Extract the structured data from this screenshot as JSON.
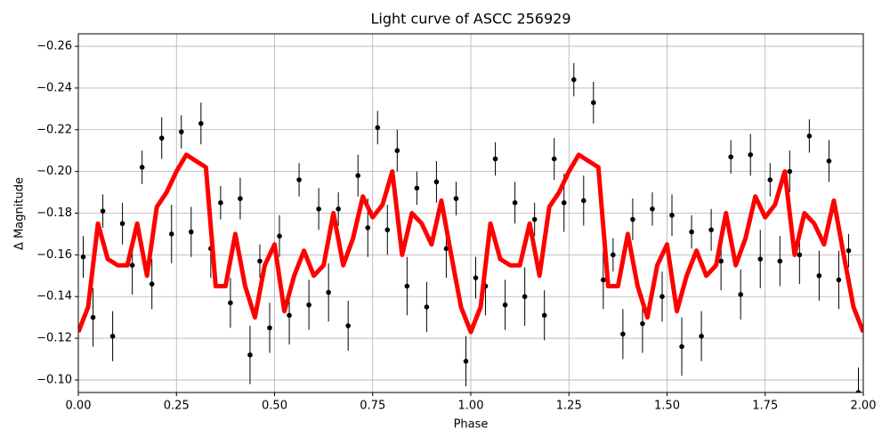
{
  "chart_data": {
    "type": "scatter",
    "title": "Light curve of ASCC 256929",
    "xlabel": "Phase",
    "ylabel": "Δ Magnitude",
    "xlim": [
      0,
      2
    ],
    "ylim": [
      -0.094,
      -0.266
    ],
    "grid": true,
    "xticks": [
      {
        "value": 0,
        "label": "0.00"
      },
      {
        "value": 0.25,
        "label": "0.25"
      },
      {
        "value": 0.5,
        "label": "0.50"
      },
      {
        "value": 0.75,
        "label": "0.75"
      },
      {
        "value": 1,
        "label": "1.00"
      },
      {
        "value": 1.25,
        "label": "1.25"
      },
      {
        "value": 1.5,
        "label": "1.50"
      },
      {
        "value": 1.75,
        "label": "1.75"
      },
      {
        "value": 2,
        "label": "2.00"
      }
    ],
    "yticks": [
      {
        "value": -0.1,
        "label": "−0.10"
      },
      {
        "value": -0.12,
        "label": "−0.12"
      },
      {
        "value": -0.14,
        "label": "−0.14"
      },
      {
        "value": -0.16,
        "label": "−0.16"
      },
      {
        "value": -0.18,
        "label": "−0.18"
      },
      {
        "value": -0.2,
        "label": "−0.20"
      },
      {
        "value": -0.22,
        "label": "−0.22"
      },
      {
        "value": -0.24,
        "label": "−0.24"
      },
      {
        "value": -0.26,
        "label": "−0.26"
      }
    ],
    "series": [
      {
        "type": "errorbar",
        "color": "#000000",
        "x": [
          0.0125,
          0.0375,
          0.0625,
          0.0875,
          0.1125,
          0.1375,
          0.1625,
          0.1875,
          0.2125,
          0.2375,
          0.2625,
          0.2875,
          0.3125,
          0.3375,
          0.3625,
          0.3875,
          0.4125,
          0.4375,
          0.4625,
          0.4875,
          0.5125,
          0.5375,
          0.5625,
          0.5875,
          0.6125,
          0.6375,
          0.6625,
          0.6875,
          0.7125,
          0.7375,
          0.7625,
          0.7875,
          0.8125,
          0.8375,
          0.8625,
          0.8875,
          0.9125,
          0.9375,
          0.9625,
          0.9875,
          1.0125,
          1.0375,
          1.0625,
          1.0875,
          1.1125,
          1.1375,
          1.1625,
          1.1875,
          1.2125,
          1.2375,
          1.2625,
          1.2875,
          1.3125,
          1.3375,
          1.3625,
          1.3875,
          1.4125,
          1.4375,
          1.4625,
          1.4875,
          1.5125,
          1.5375,
          1.5625,
          1.5875,
          1.6125,
          1.6375,
          1.6625,
          1.6875,
          1.7125,
          1.7375,
          1.7625,
          1.7875,
          1.8125,
          1.8375,
          1.8625,
          1.8875,
          1.9125,
          1.9375,
          1.9625,
          1.9875
        ],
        "values": [
          -0.159,
          -0.13,
          -0.181,
          -0.121,
          -0.175,
          -0.155,
          -0.202,
          -0.146,
          -0.216,
          -0.17,
          -0.219,
          -0.171,
          -0.223,
          -0.163,
          -0.185,
          -0.137,
          -0.187,
          -0.112,
          -0.157,
          -0.125,
          -0.169,
          -0.131,
          -0.196,
          -0.136,
          -0.182,
          -0.142,
          -0.182,
          -0.126,
          -0.198,
          -0.173,
          -0.221,
          -0.172,
          -0.21,
          -0.145,
          -0.192,
          -0.135,
          -0.195,
          -0.163,
          -0.187,
          -0.109,
          -0.149,
          -0.145,
          -0.206,
          -0.136,
          -0.185,
          -0.14,
          -0.177,
          -0.131,
          -0.206,
          -0.185,
          -0.244,
          -0.186,
          -0.233,
          -0.148,
          -0.16,
          -0.122,
          -0.177,
          -0.127,
          -0.182,
          -0.14,
          -0.179,
          -0.116,
          -0.171,
          -0.121,
          -0.172,
          -0.157,
          -0.207,
          -0.141,
          -0.208,
          -0.158,
          -0.196,
          -0.157,
          -0.2,
          -0.16,
          -0.217,
          -0.15,
          -0.205,
          -0.148,
          -0.162,
          -0.094
        ],
        "errors": [
          0.01,
          0.014,
          0.008,
          0.012,
          0.01,
          0.014,
          0.008,
          0.012,
          0.01,
          0.014,
          0.008,
          0.012,
          0.01,
          0.014,
          0.008,
          0.012,
          0.01,
          0.014,
          0.008,
          0.012,
          0.01,
          0.014,
          0.008,
          0.012,
          0.01,
          0.014,
          0.008,
          0.012,
          0.01,
          0.014,
          0.008,
          0.012,
          0.01,
          0.014,
          0.008,
          0.012,
          0.01,
          0.014,
          0.008,
          0.012,
          0.01,
          0.014,
          0.008,
          0.012,
          0.01,
          0.014,
          0.008,
          0.012,
          0.01,
          0.014,
          0.008,
          0.012,
          0.01,
          0.014,
          0.008,
          0.012,
          0.01,
          0.014,
          0.008,
          0.012,
          0.01,
          0.014,
          0.008,
          0.012,
          0.01,
          0.014,
          0.008,
          0.012,
          0.01,
          0.014,
          0.008,
          0.012,
          0.01,
          0.014,
          0.008,
          0.012,
          0.01,
          0.014,
          0.008,
          0.012
        ]
      },
      {
        "type": "line",
        "color": "#ff0000",
        "x": [
          0,
          0.025,
          0.05,
          0.075,
          0.1,
          0.125,
          0.15,
          0.175,
          0.2,
          0.225,
          0.25,
          0.275,
          0.3,
          0.325,
          0.35,
          0.375,
          0.4,
          0.425,
          0.45,
          0.475,
          0.5,
          0.525,
          0.55,
          0.575,
          0.6,
          0.625,
          0.65,
          0.675,
          0.7,
          0.725,
          0.75,
          0.775,
          0.8,
          0.825,
          0.85,
          0.875,
          0.9,
          0.925,
          0.95,
          0.975,
          1,
          1.025,
          1.05,
          1.075,
          1.1,
          1.125,
          1.15,
          1.175,
          1.2,
          1.225,
          1.25,
          1.275,
          1.3,
          1.325,
          1.35,
          1.375,
          1.4,
          1.425,
          1.45,
          1.475,
          1.5,
          1.525,
          1.55,
          1.575,
          1.6,
          1.625,
          1.65,
          1.675,
          1.7,
          1.725,
          1.75,
          1.775,
          1.8,
          1.825,
          1.85,
          1.875,
          1.9,
          1.925,
          1.95,
          1.975,
          2
        ],
        "values": [
          -0.123,
          -0.135,
          -0.175,
          -0.158,
          -0.155,
          -0.155,
          -0.175,
          -0.15,
          -0.183,
          -0.19,
          -0.2,
          -0.208,
          -0.205,
          -0.202,
          -0.145,
          -0.145,
          -0.17,
          -0.145,
          -0.13,
          -0.155,
          -0.165,
          -0.133,
          -0.15,
          -0.162,
          -0.15,
          -0.155,
          -0.18,
          -0.155,
          -0.168,
          -0.188,
          -0.178,
          -0.184,
          -0.2,
          -0.16,
          -0.18,
          -0.175,
          -0.165,
          -0.186,
          -0.16,
          -0.135,
          -0.123,
          -0.135,
          -0.175,
          -0.158,
          -0.155,
          -0.155,
          -0.175,
          -0.15,
          -0.183,
          -0.19,
          -0.2,
          -0.208,
          -0.205,
          -0.202,
          -0.145,
          -0.145,
          -0.17,
          -0.145,
          -0.13,
          -0.155,
          -0.165,
          -0.133,
          -0.15,
          -0.162,
          -0.15,
          -0.155,
          -0.18,
          -0.155,
          -0.168,
          -0.188,
          -0.178,
          -0.184,
          -0.2,
          -0.16,
          -0.18,
          -0.175,
          -0.165,
          -0.186,
          -0.16,
          -0.135,
          -0.123
        ]
      }
    ]
  }
}
